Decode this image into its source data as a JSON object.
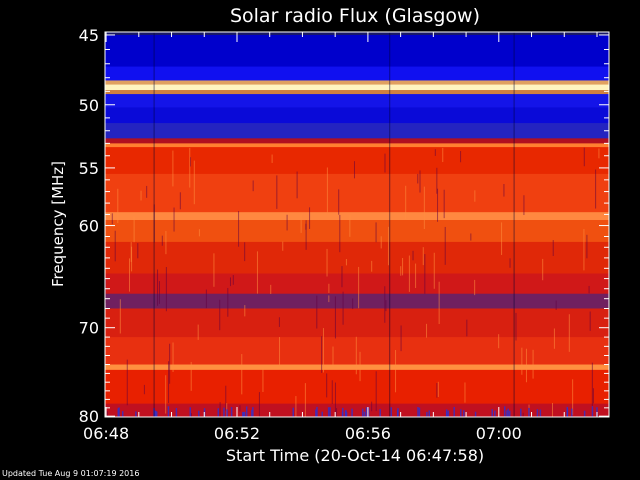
{
  "chart_data": {
    "type": "heatmap",
    "title": "Solar radio Flux (Glasgow)",
    "xlabel": "Start Time (20-Oct-14 06:47:58)",
    "ylabel": "Frequency [MHz]",
    "x_ticks": [
      "06:48",
      "06:52",
      "06:56",
      "07:00"
    ],
    "x_tick_minutes": [
      0.033,
      4.033,
      8.033,
      12.033
    ],
    "xlim_minutes": [
      0,
      15.4
    ],
    "y_ticks": [
      45,
      50,
      55,
      60,
      70,
      80
    ],
    "ylim": [
      44.8,
      80.1
    ],
    "y_scale": "log",
    "grid": false,
    "segment_boundaries_minutes": [
      1.5,
      8.7,
      12.5
    ],
    "bands": [
      {
        "from": 44.8,
        "to": 45.0,
        "color": "#1a1a66"
      },
      {
        "from": 45.0,
        "to": 47.2,
        "color": "#0000cc"
      },
      {
        "from": 47.2,
        "to": 48.2,
        "color": "#1010f0"
      },
      {
        "from": 48.2,
        "to": 48.5,
        "color": "#e0a060"
      },
      {
        "from": 48.5,
        "to": 48.9,
        "color": "#fff4c0"
      },
      {
        "from": 48.9,
        "to": 49.2,
        "color": "#d08040"
      },
      {
        "from": 49.2,
        "to": 50.2,
        "color": "#1414e8"
      },
      {
        "from": 50.2,
        "to": 51.4,
        "color": "#0a0ad8"
      },
      {
        "from": 51.4,
        "to": 52.6,
        "color": "#2424c0"
      },
      {
        "from": 52.6,
        "to": 53.0,
        "color": "#b01020"
      },
      {
        "from": 53.0,
        "to": 53.3,
        "color": "#ff8030"
      },
      {
        "from": 53.3,
        "to": 55.5,
        "color": "#e82800"
      },
      {
        "from": 55.5,
        "to": 58.8,
        "color": "#f04010"
      },
      {
        "from": 58.8,
        "to": 59.5,
        "color": "#ff8840"
      },
      {
        "from": 59.5,
        "to": 61.5,
        "color": "#f05010"
      },
      {
        "from": 61.5,
        "to": 64.5,
        "color": "#e02808"
      },
      {
        "from": 64.5,
        "to": 66.5,
        "color": "#d01818"
      },
      {
        "from": 66.5,
        "to": 68.0,
        "color": "#702060"
      },
      {
        "from": 68.0,
        "to": 71.0,
        "color": "#d82010"
      },
      {
        "from": 71.0,
        "to": 74.0,
        "color": "#e83010"
      },
      {
        "from": 74.0,
        "to": 74.6,
        "color": "#ff9040"
      },
      {
        "from": 74.6,
        "to": 78.5,
        "color": "#e82000"
      },
      {
        "from": 78.5,
        "to": 80.1,
        "color": "#c01020"
      }
    ]
  },
  "footer": {
    "updated": "Updated Tue Aug  9 01:07:19 2016"
  }
}
